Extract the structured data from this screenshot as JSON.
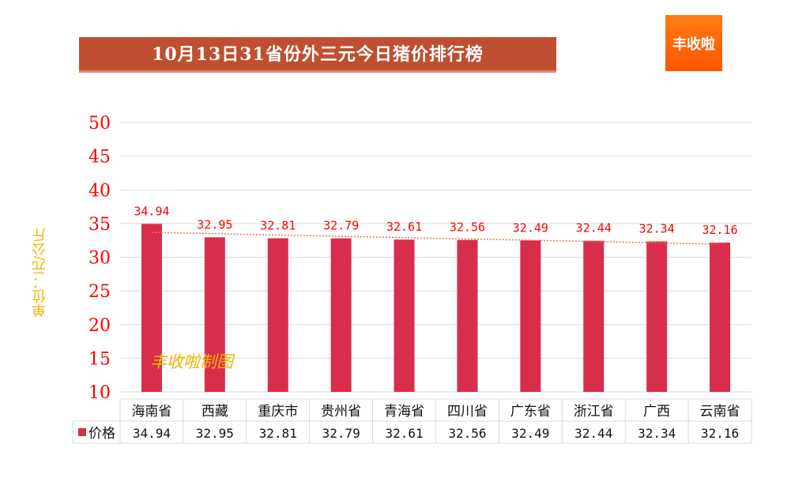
{
  "title": "10月13日31省份外三元今日猪价排行榜",
  "logo_text": "丰收啦",
  "watermark": "丰收啦制图",
  "colors": {
    "bar": "#d92d4c",
    "axis_label": "#ff0000",
    "trend": "#f07050",
    "title_bg": "#bf4f30"
  },
  "chart_data": {
    "type": "bar",
    "title": "10月13日31省份外三元今日猪价排行榜",
    "ylabel": "单位：元/公斤",
    "ylim": [
      10,
      50
    ],
    "yticks": [
      10,
      15,
      20,
      25,
      30,
      35,
      40,
      45,
      50
    ],
    "grid": true,
    "trendline": "linear",
    "categories": [
      "海南省",
      "西藏",
      "重庆市",
      "贵州省",
      "青海省",
      "四川省",
      "广东省",
      "浙江省",
      "广西",
      "云南省"
    ],
    "series": [
      {
        "name": "价格",
        "values": [
          34.94,
          32.95,
          32.81,
          32.79,
          32.61,
          32.56,
          32.49,
          32.44,
          32.34,
          32.16
        ]
      }
    ],
    "data_table": true
  }
}
